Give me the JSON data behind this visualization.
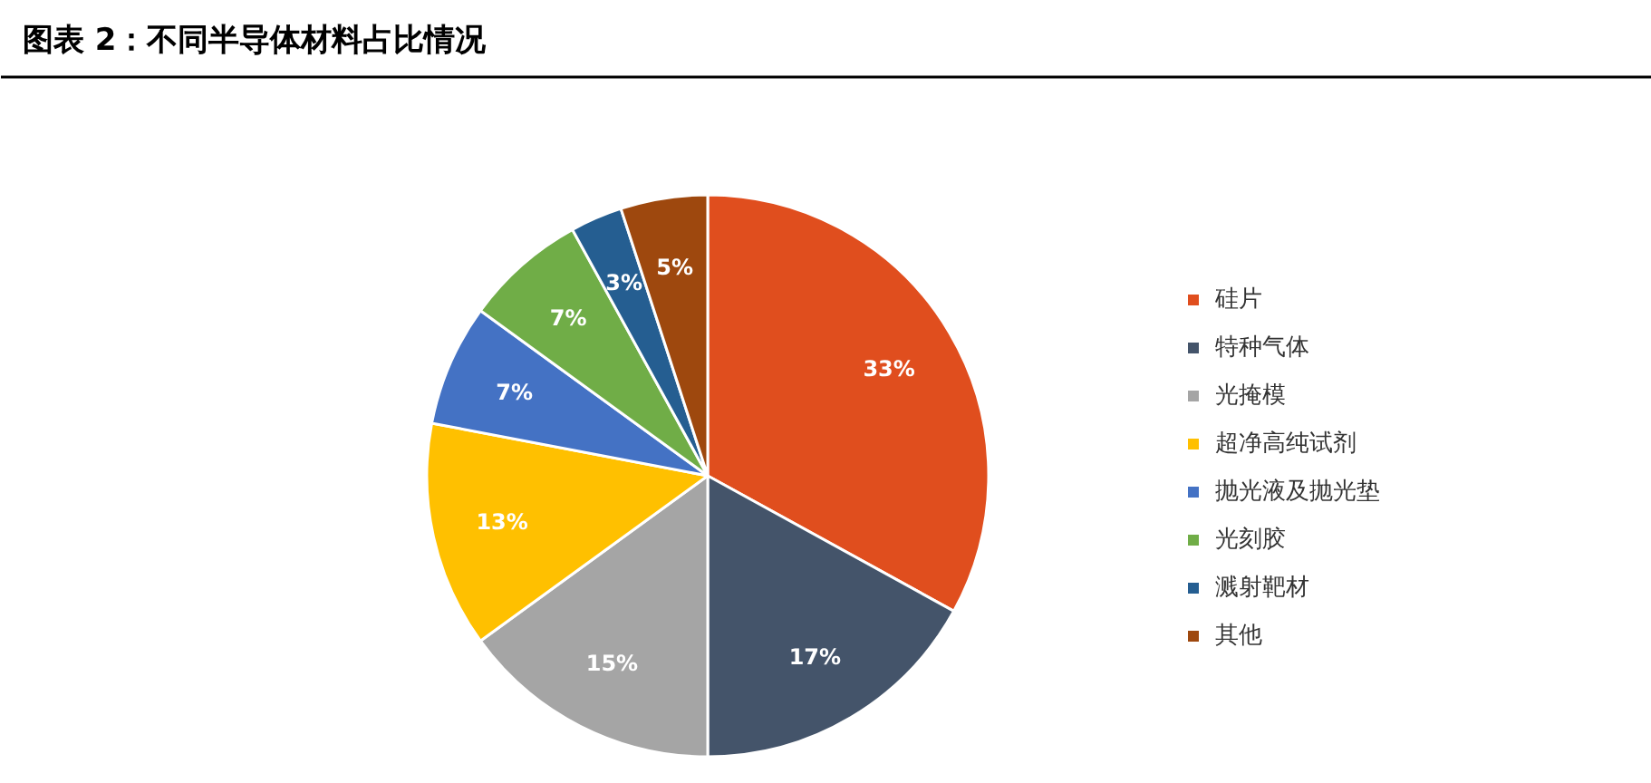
{
  "chart_data": {
    "type": "pie",
    "title": "图表 2：不同半导体材料占比情况",
    "categories": [
      "硅片",
      "特种气体",
      "光掩模",
      "超净高纯试剂",
      "抛光液及抛光垫",
      "光刻胶",
      "溅射靶材",
      "其他"
    ],
    "values": [
      33,
      17,
      15,
      13,
      7,
      7,
      3,
      5
    ],
    "colors": [
      "#e04e1e",
      "#44546a",
      "#a5a5a5",
      "#ffc000",
      "#4472c4",
      "#70ad47",
      "#255e91",
      "#9e480e"
    ],
    "value_labels": [
      "33%",
      "17%",
      "15%",
      "13%",
      "7%",
      "7%",
      "3%",
      "5%"
    ],
    "legend": "right"
  }
}
